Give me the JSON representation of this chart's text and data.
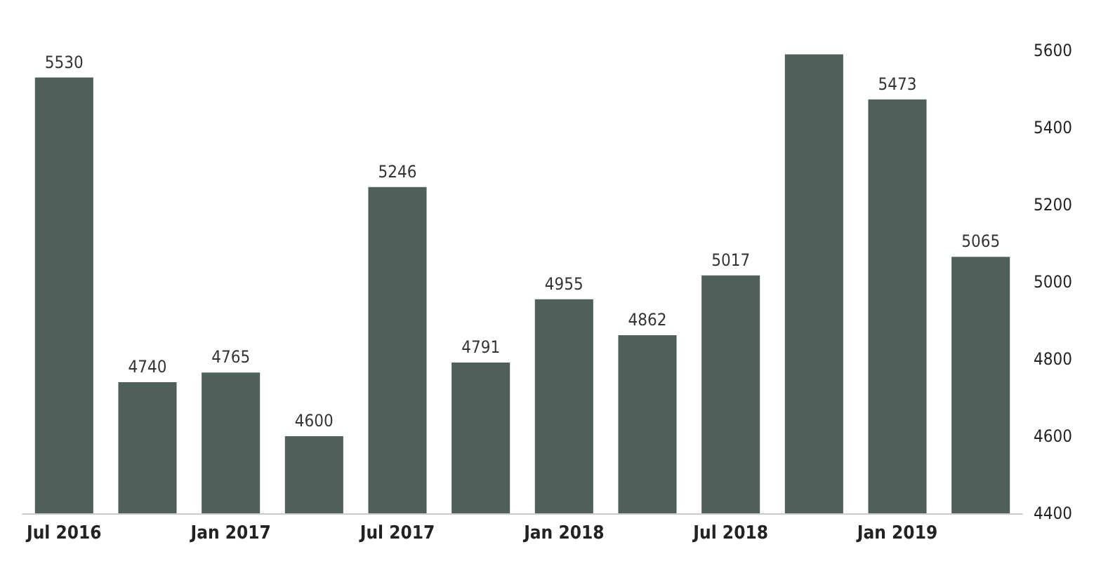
{
  "chart_data": {
    "type": "bar",
    "categories": [
      "Jul 2016",
      null,
      "Jan 2017",
      null,
      "Jul 2017",
      null,
      "Jan 2018",
      null,
      "Jul 2018",
      null,
      "Jan 2019",
      null
    ],
    "values": [
      5530,
      4740,
      4765,
      4600,
      5246,
      4791,
      4955,
      4862,
      5017,
      5590,
      5473,
      5065
    ],
    "value_labels": [
      "5530",
      "4740",
      "4765",
      "4600",
      "5246",
      "4791",
      "4955",
      "4862",
      "5017",
      null,
      "5473",
      "5065"
    ],
    "color": "#4f605b",
    "ylim": [
      4400,
      5600
    ],
    "yticks": [
      4400,
      4600,
      4800,
      5000,
      5200,
      5400,
      5600
    ],
    "grid": false
  }
}
